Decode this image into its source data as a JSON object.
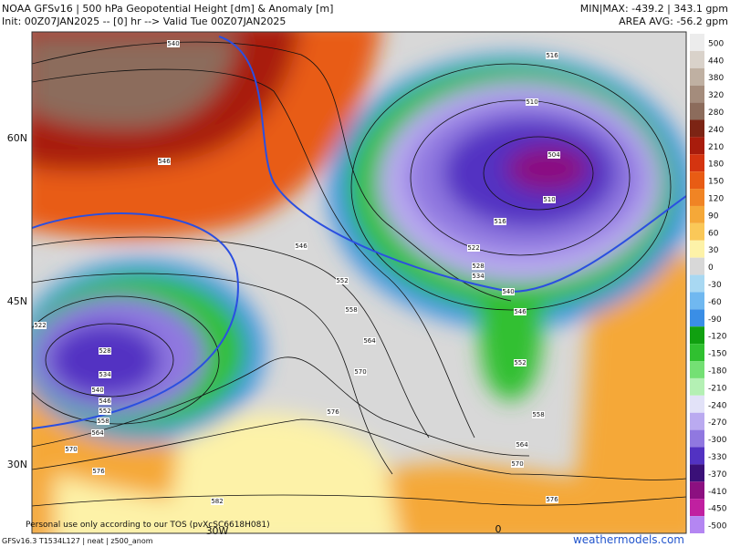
{
  "header": {
    "title": "NOAA GFSv16 | 500 hPa Geopotential Height [dm] & Anomaly [m]",
    "init": "Init: 00Z07JAN2025 -- [0] hr --> Valid Tue 00Z07JAN2025",
    "minmax": "MIN|MAX: -439.2 | 343.1 gpm",
    "area_avg": "AREA AVG: -56.2 gpm"
  },
  "map": {
    "lat_labels": [
      "60N",
      "45N",
      "30N"
    ],
    "lon_labels": [
      "30W",
      "0"
    ],
    "contour_labels": [
      "540",
      "546",
      "546",
      "552",
      "558",
      "564",
      "570",
      "576",
      "582",
      "522",
      "528",
      "534",
      "540",
      "546",
      "552",
      "558",
      "564",
      "570",
      "576",
      "516",
      "510",
      "504",
      "510",
      "516",
      "522",
      "528",
      "534",
      "540",
      "546",
      "552",
      "558",
      "564",
      "570",
      "576"
    ]
  },
  "colorbar": {
    "labels": [
      "500",
      "440",
      "380",
      "320",
      "280",
      "240",
      "210",
      "180",
      "150",
      "120",
      "90",
      "60",
      "30",
      "0",
      "-30",
      "-60",
      "-90",
      "-120",
      "-150",
      "-180",
      "-210",
      "-240",
      "-270",
      "-300",
      "-330",
      "-370",
      "-410",
      "-450",
      "-500"
    ],
    "colors": [
      "#ececec",
      "#d9d2ca",
      "#bfb0a2",
      "#a48c7c",
      "#8c6c5c",
      "#7c2414",
      "#a81c0c",
      "#d43410",
      "#e85c14",
      "#f08424",
      "#f5a838",
      "#fac858",
      "#fdf2a8",
      "#d8d8d8",
      "#a8d8f2",
      "#70b8f0",
      "#3a8ee6",
      "#10a010",
      "#30c030",
      "#74e074",
      "#b4f0b4",
      "#e2e2f8",
      "#baaaf0",
      "#9078e0",
      "#5232c2",
      "#3a1078",
      "#8c1080",
      "#c020a0",
      "#b486f2"
    ]
  },
  "footer": {
    "disclaimer": "Personal use only according to our TOS (pvXcSC6618H081)",
    "model": "GFSv16.3 T1534L127 | neat | z500_anom",
    "brand": "weathermodels.com"
  }
}
